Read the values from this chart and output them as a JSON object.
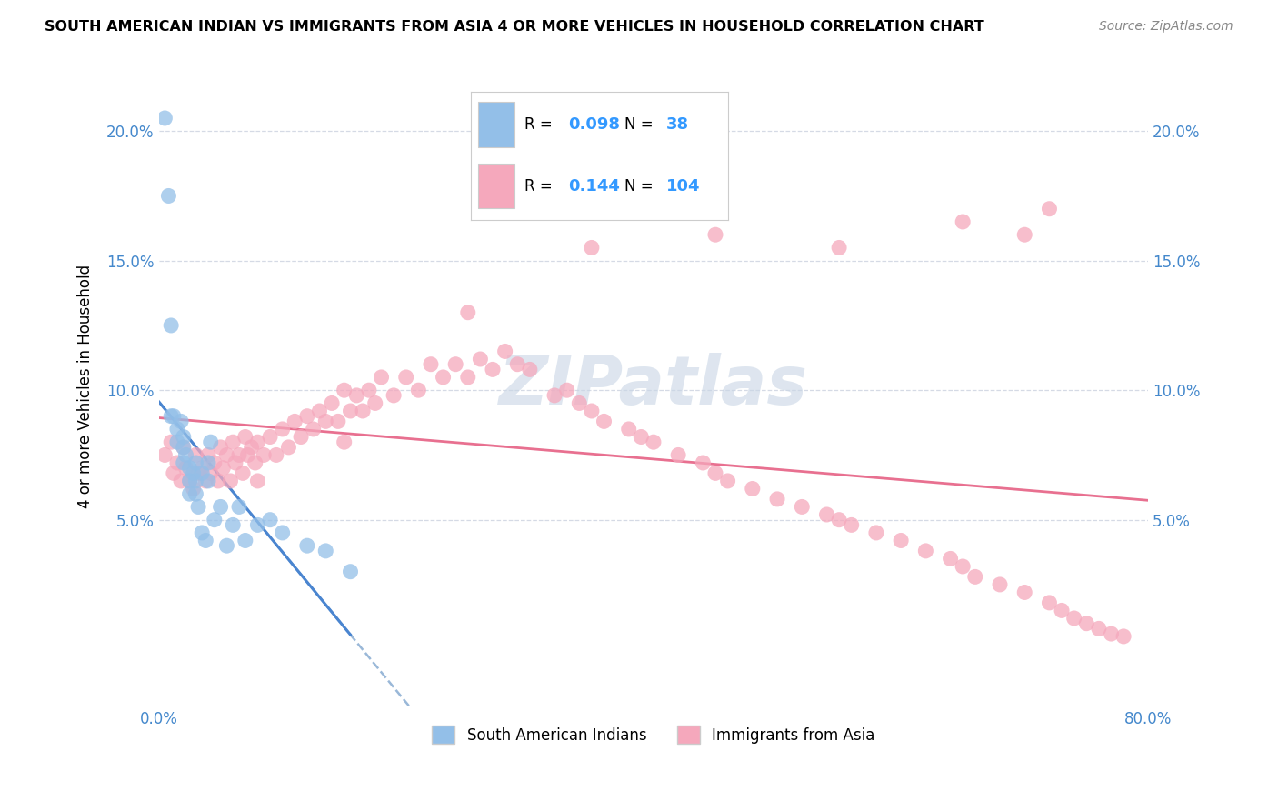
{
  "title": "SOUTH AMERICAN INDIAN VS IMMIGRANTS FROM ASIA 4 OR MORE VEHICLES IN HOUSEHOLD CORRELATION CHART",
  "source": "Source: ZipAtlas.com",
  "ylabel": "4 or more Vehicles in Household",
  "xlim": [
    0.0,
    0.8
  ],
  "ylim": [
    -0.022,
    0.225
  ],
  "xticks": [
    0.0,
    0.8
  ],
  "yticks": [
    0.05,
    0.1,
    0.15,
    0.2
  ],
  "legend_blue_R": "0.098",
  "legend_blue_N": "38",
  "legend_pink_R": "0.144",
  "legend_pink_N": "104",
  "blue_scatter_color": "#93bfe8",
  "pink_scatter_color": "#f5a8bc",
  "blue_line_color": "#4a85d0",
  "pink_line_color": "#e87090",
  "dashed_line_color": "#9ab8d8",
  "grid_color": "#d5dae5",
  "background_color": "#ffffff",
  "watermark_text": "ZIPatlas",
  "legend_label_blue": "South American Indians",
  "legend_label_pink": "Immigrants from Asia",
  "blue_x": [
    0.005,
    0.008,
    0.01,
    0.01,
    0.012,
    0.015,
    0.015,
    0.018,
    0.02,
    0.02,
    0.02,
    0.022,
    0.025,
    0.025,
    0.025,
    0.028,
    0.03,
    0.03,
    0.03,
    0.032,
    0.035,
    0.035,
    0.038,
    0.04,
    0.04,
    0.042,
    0.045,
    0.05,
    0.055,
    0.06,
    0.065,
    0.07,
    0.08,
    0.09,
    0.1,
    0.12,
    0.135,
    0.155
  ],
  "blue_y": [
    0.205,
    0.175,
    0.125,
    0.09,
    0.09,
    0.085,
    0.08,
    0.088,
    0.072,
    0.078,
    0.082,
    0.075,
    0.07,
    0.065,
    0.06,
    0.068,
    0.072,
    0.065,
    0.06,
    0.055,
    0.068,
    0.045,
    0.042,
    0.072,
    0.065,
    0.08,
    0.05,
    0.055,
    0.04,
    0.048,
    0.055,
    0.042,
    0.048,
    0.05,
    0.045,
    0.04,
    0.038,
    0.03
  ],
  "pink_x": [
    0.005,
    0.01,
    0.012,
    0.015,
    0.018,
    0.02,
    0.022,
    0.025,
    0.028,
    0.03,
    0.032,
    0.035,
    0.038,
    0.04,
    0.042,
    0.045,
    0.048,
    0.05,
    0.052,
    0.055,
    0.058,
    0.06,
    0.062,
    0.065,
    0.068,
    0.07,
    0.072,
    0.075,
    0.078,
    0.08,
    0.085,
    0.09,
    0.095,
    0.1,
    0.105,
    0.11,
    0.115,
    0.12,
    0.125,
    0.13,
    0.135,
    0.14,
    0.145,
    0.15,
    0.155,
    0.16,
    0.165,
    0.17,
    0.175,
    0.18,
    0.19,
    0.2,
    0.21,
    0.22,
    0.23,
    0.24,
    0.25,
    0.26,
    0.27,
    0.28,
    0.29,
    0.3,
    0.32,
    0.33,
    0.34,
    0.35,
    0.36,
    0.38,
    0.39,
    0.4,
    0.42,
    0.44,
    0.45,
    0.46,
    0.48,
    0.5,
    0.52,
    0.54,
    0.55,
    0.56,
    0.58,
    0.6,
    0.62,
    0.64,
    0.65,
    0.66,
    0.68,
    0.7,
    0.72,
    0.73,
    0.74,
    0.75,
    0.76,
    0.77,
    0.78,
    0.7,
    0.72,
    0.65,
    0.55,
    0.45,
    0.35,
    0.25,
    0.15,
    0.08
  ],
  "pink_y": [
    0.075,
    0.08,
    0.068,
    0.072,
    0.065,
    0.078,
    0.07,
    0.065,
    0.062,
    0.075,
    0.068,
    0.07,
    0.065,
    0.075,
    0.068,
    0.072,
    0.065,
    0.078,
    0.07,
    0.075,
    0.065,
    0.08,
    0.072,
    0.075,
    0.068,
    0.082,
    0.075,
    0.078,
    0.072,
    0.08,
    0.075,
    0.082,
    0.075,
    0.085,
    0.078,
    0.088,
    0.082,
    0.09,
    0.085,
    0.092,
    0.088,
    0.095,
    0.088,
    0.1,
    0.092,
    0.098,
    0.092,
    0.1,
    0.095,
    0.105,
    0.098,
    0.105,
    0.1,
    0.11,
    0.105,
    0.11,
    0.105,
    0.112,
    0.108,
    0.115,
    0.11,
    0.108,
    0.098,
    0.1,
    0.095,
    0.092,
    0.088,
    0.085,
    0.082,
    0.08,
    0.075,
    0.072,
    0.068,
    0.065,
    0.062,
    0.058,
    0.055,
    0.052,
    0.05,
    0.048,
    0.045,
    0.042,
    0.038,
    0.035,
    0.032,
    0.028,
    0.025,
    0.022,
    0.018,
    0.015,
    0.012,
    0.01,
    0.008,
    0.006,
    0.005,
    0.16,
    0.17,
    0.165,
    0.155,
    0.16,
    0.155,
    0.13,
    0.08,
    0.065
  ]
}
